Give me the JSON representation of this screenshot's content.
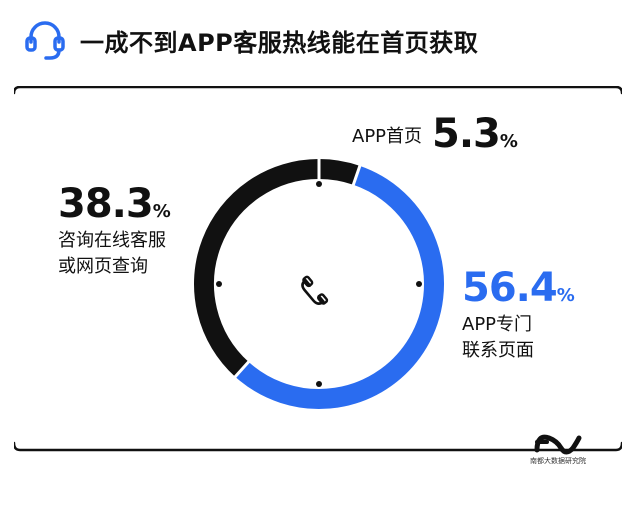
{
  "title": "一成不到APP客服热线能在首页获取",
  "icons": {
    "header": "headset-icon",
    "center": "phone-icon",
    "brand": "brand-logo"
  },
  "colors": {
    "blue": "#2a6cf0",
    "black": "#111111",
    "accent": "#2a6cf0"
  },
  "chart_data": {
    "type": "pie",
    "style": "donut",
    "title": "一成不到APP客服热线能在首页获取",
    "slices": [
      {
        "label": "咨询在线客服或网页查询",
        "value": 38.3,
        "color": "#111111"
      },
      {
        "label": "APP首页",
        "value": 5.3,
        "color": "#111111"
      },
      {
        "label": "APP专门联系页面",
        "value": 56.4,
        "color": "#2a6cf0"
      }
    ]
  },
  "labels": {
    "online": {
      "value": "38.3",
      "unit": "%",
      "line1": "咨询在线客服",
      "line2": "或网页查询"
    },
    "home": {
      "text": "APP首页",
      "value": "5.3",
      "unit": "%"
    },
    "contact": {
      "value": "56.4",
      "unit": "%",
      "line1": "APP专门",
      "line2": "联系页面"
    }
  },
  "brand": {
    "text": "南都大数据研究院"
  }
}
